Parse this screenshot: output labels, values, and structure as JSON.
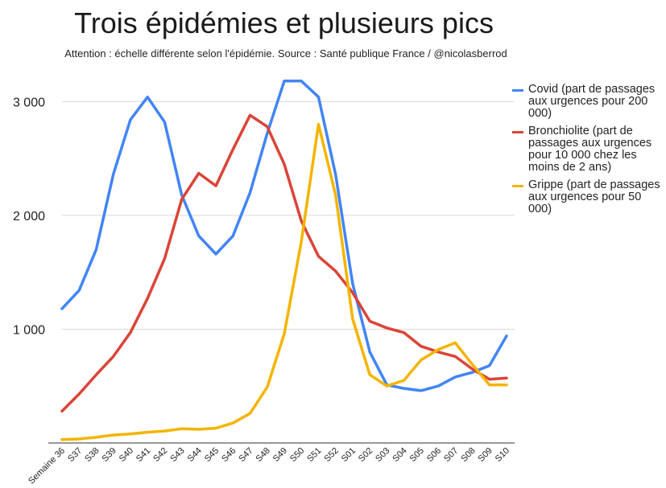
{
  "title": "Trois épidémies et plusieurs pics",
  "subtitle": "Attention : échelle différente selon l'épidémie. Source : Santé publique France / @nicolasberrod",
  "chart_data": {
    "type": "line",
    "x": [
      "Semaine 36",
      "S37",
      "S38",
      "S39",
      "S40",
      "S41",
      "S42",
      "S43",
      "S44",
      "S45",
      "S46",
      "S47",
      "S48",
      "S49",
      "S50",
      "S51",
      "S52",
      "S01",
      "S02",
      "S03",
      "S04",
      "S05",
      "S06",
      "S07",
      "S08",
      "S09",
      "S10"
    ],
    "yticks": [
      "1 000",
      "2 000",
      "3 000"
    ],
    "ylim": [
      0,
      3200
    ],
    "grid": true,
    "legend_position": "right",
    "series": [
      {
        "name": "Covid (part de passages aux urgences pour 200 000)",
        "color": "#4285f4",
        "values": [
          1180,
          1340,
          1700,
          2360,
          2840,
          3040,
          2820,
          2180,
          1820,
          1660,
          1820,
          2200,
          2720,
          3180,
          3180,
          3040,
          2360,
          1400,
          800,
          510,
          480,
          460,
          500,
          580,
          620,
          680,
          940
        ]
      },
      {
        "name": "Bronchiolite (part de passages aux urgences pour 10 000 chez les moins de 2 ans)",
        "color": "#db4437",
        "values": [
          280,
          430,
          600,
          760,
          970,
          1270,
          1620,
          2140,
          2370,
          2260,
          2580,
          2880,
          2780,
          2450,
          1950,
          1640,
          1510,
          1320,
          1070,
          1010,
          970,
          850,
          800,
          760,
          650,
          560,
          570
        ]
      },
      {
        "name": "Grippe (part de passages aux urgences pour 50 000)",
        "color": "#f4b400",
        "values": [
          30,
          35,
          50,
          70,
          80,
          95,
          105,
          125,
          120,
          130,
          175,
          260,
          490,
          960,
          1770,
          2800,
          2180,
          1090,
          600,
          500,
          550,
          730,
          820,
          880,
          690,
          510,
          510
        ]
      }
    ]
  }
}
